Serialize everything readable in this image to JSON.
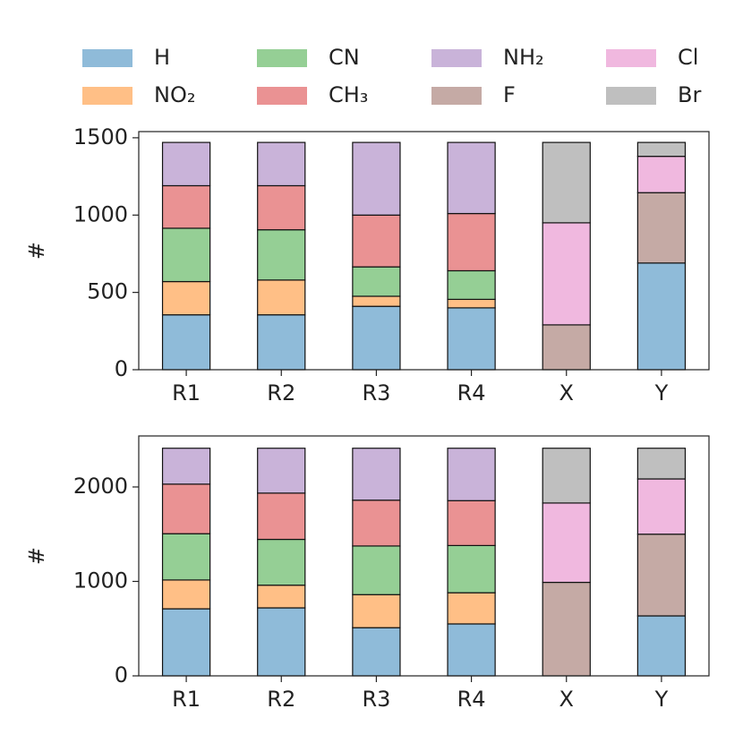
{
  "chart_data": [
    {
      "type": "bar",
      "stacked": true,
      "ylabel": "#",
      "categories": [
        "R1",
        "R2",
        "R3",
        "R4",
        "X",
        "Y"
      ],
      "ylim": [
        0,
        1540
      ],
      "yticks": [
        0,
        500,
        1000,
        1500
      ],
      "series": [
        {
          "name": "H",
          "color": "#8fbbd9",
          "values": [
            355,
            355,
            410,
            400,
            null,
            690
          ]
        },
        {
          "name": "NO₂",
          "color": "#ffbf86",
          "values": [
            215,
            225,
            65,
            55,
            null,
            null
          ]
        },
        {
          "name": "CN",
          "color": "#95cf95",
          "values": [
            345,
            325,
            190,
            185,
            null,
            null
          ]
        },
        {
          "name": "CH₃",
          "color": "#ea9293",
          "values": [
            275,
            285,
            335,
            370,
            null,
            null
          ]
        },
        {
          "name": "NH₂",
          "color": "#c9b3d9",
          "values": [
            280,
            280,
            470,
            460,
            null,
            null
          ]
        },
        {
          "name": "F",
          "color": "#c5aaa5",
          "values": [
            null,
            null,
            null,
            null,
            290,
            455
          ]
        },
        {
          "name": "Cl",
          "color": "#f0b8df",
          "values": [
            null,
            null,
            null,
            null,
            660,
            235
          ]
        },
        {
          "name": "Br",
          "color": "#bfbfbf",
          "values": [
            null,
            null,
            null,
            null,
            520,
            90
          ]
        }
      ]
    },
    {
      "type": "bar",
      "stacked": true,
      "ylabel": "#",
      "categories": [
        "R1",
        "R2",
        "R3",
        "R4",
        "X",
        "Y"
      ],
      "ylim": [
        0,
        2540
      ],
      "yticks": [
        0,
        1000,
        2000
      ],
      "series": [
        {
          "values": [
            710,
            720,
            510,
            550,
            null,
            635
          ]
        },
        {
          "values": [
            305,
            240,
            350,
            330,
            null,
            null
          ]
        },
        {
          "values": [
            490,
            485,
            515,
            500,
            null,
            null
          ]
        },
        {
          "values": [
            525,
            490,
            485,
            475,
            null,
            null
          ]
        },
        {
          "values": [
            380,
            475,
            550,
            555,
            null,
            null
          ]
        },
        {
          "values": [
            null,
            null,
            null,
            null,
            990,
            865
          ]
        },
        {
          "values": [
            null,
            null,
            null,
            null,
            840,
            585
          ]
        },
        {
          "values": [
            null,
            null,
            null,
            null,
            580,
            325
          ]
        }
      ]
    }
  ]
}
